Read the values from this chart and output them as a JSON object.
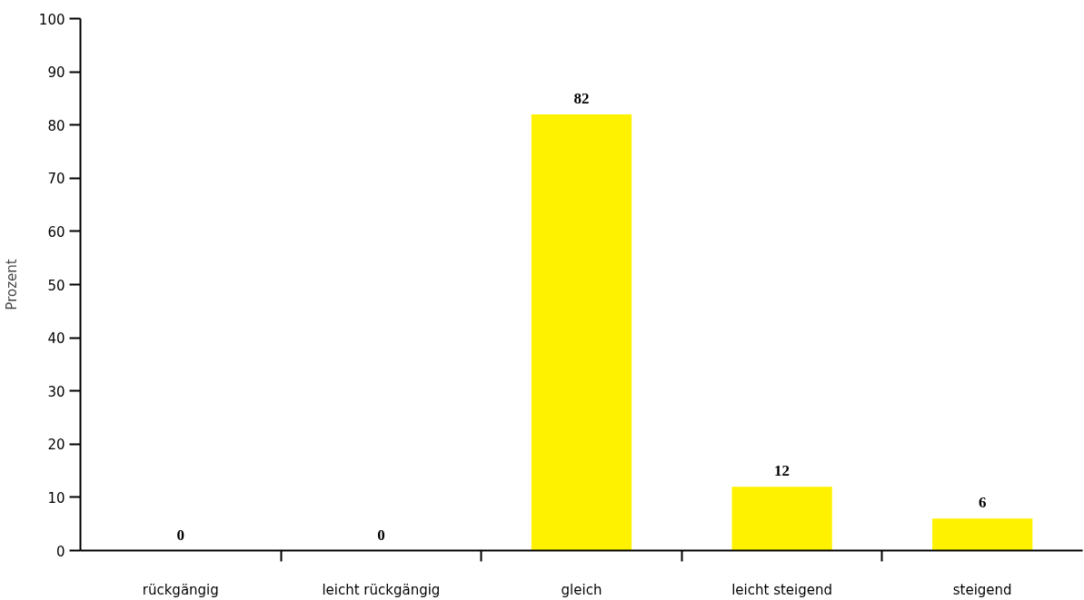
{
  "chart_data": {
    "type": "bar",
    "ylabel": "Prozent",
    "categories": [
      "rückgängig",
      "leicht rückgängig",
      "gleich",
      "leicht steigend",
      "steigend"
    ],
    "values": [
      0,
      0,
      82,
      12,
      6
    ],
    "color": "#fff200",
    "ylim": [
      0,
      100
    ],
    "yticks": [
      0,
      10,
      20,
      30,
      40,
      50,
      60,
      70,
      80,
      90,
      100
    ],
    "grid": false,
    "data_labels": true
  }
}
